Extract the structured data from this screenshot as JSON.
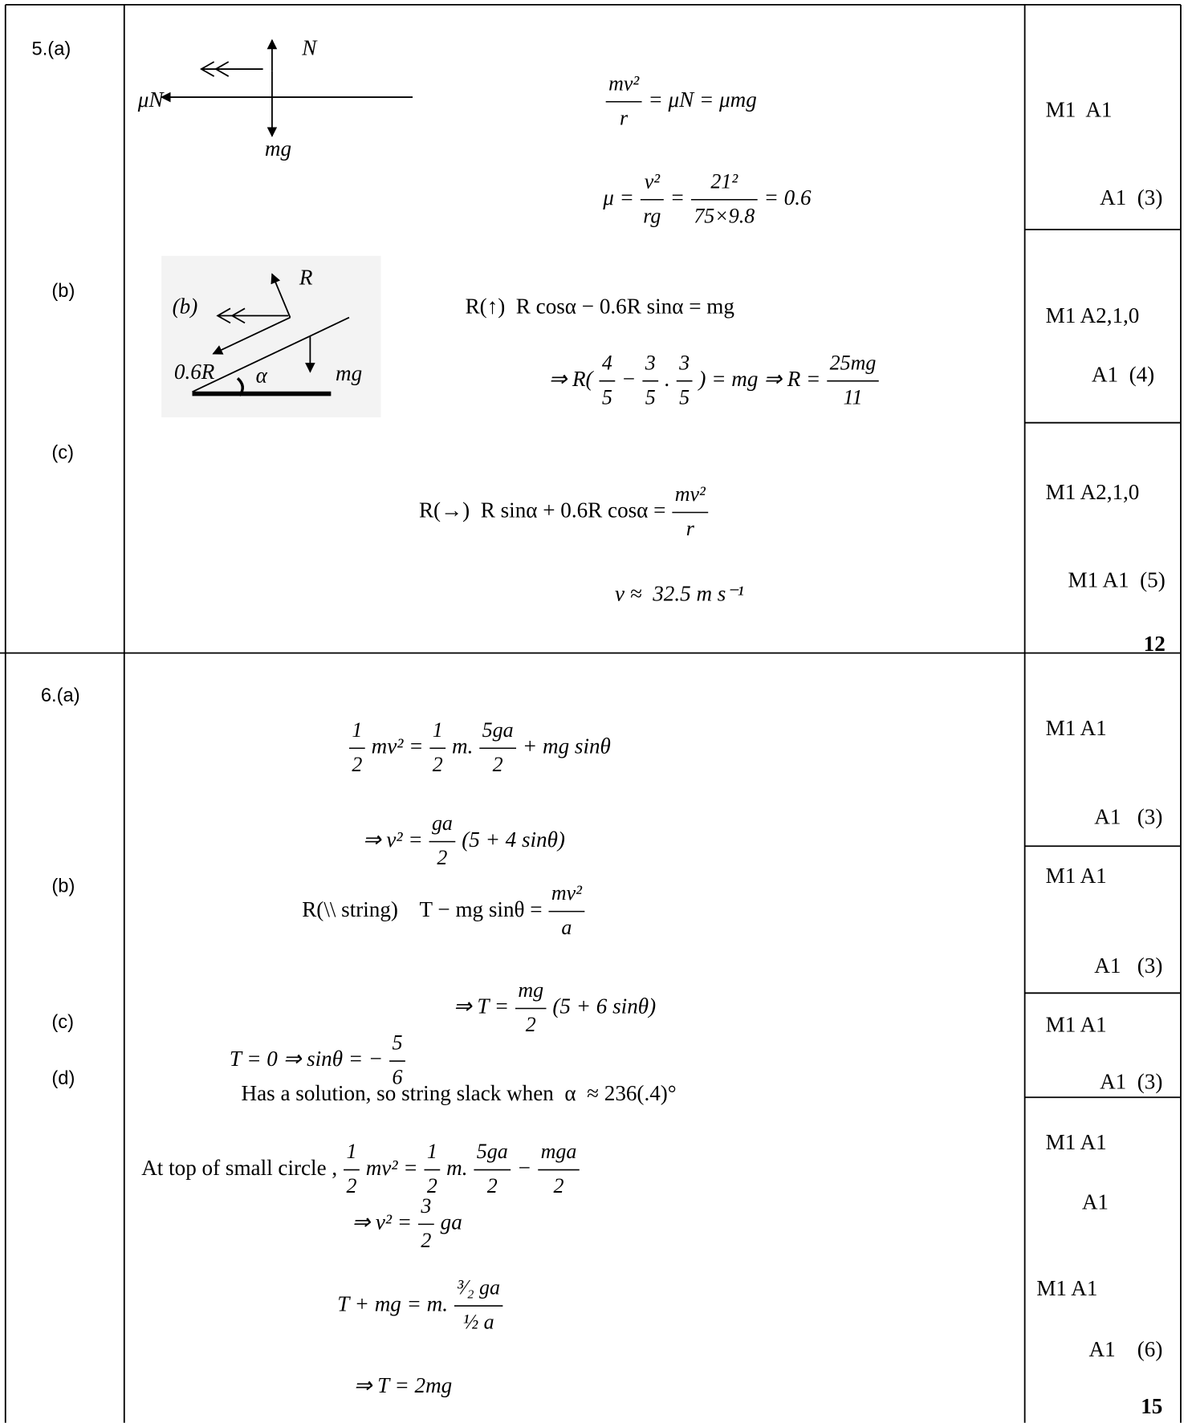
{
  "labels": [
    "5.(a)",
    "(b)",
    "(c)",
    "6.(a)",
    "(b)",
    "(c)",
    "(d)"
  ],
  "marks": [
    "M1  A1",
    "A1  (3)",
    "M1 A2,1,0",
    "A1  (4)",
    "M1 A2,1,0",
    "M1 A1  (5)",
    "12",
    "M1 A1",
    "A1   (3)",
    "M1 A1",
    "A1   (3)",
    "M1 A1",
    "A1  (3)",
    "M1 A1",
    "A1",
    "M1 A1",
    "A1    (6)",
    "15"
  ],
  "diagram_a": {
    "n": "N",
    "mu_n": "μN",
    "mg": "mg"
  },
  "diagram_b": {
    "r": "R",
    "tag": "(b)",
    "friction": "0.6R",
    "angle": "α",
    "mg": "mg"
  },
  "equations": [
    {
      "parts": [
        [
          "mv²",
          "r"
        ],
        "= μN = μmg"
      ]
    },
    {
      "parts": [
        "μ =",
        [
          "v²",
          "rg"
        ],
        "=",
        [
          "21²",
          "75×9.8"
        ],
        "= 0.6"
      ]
    },
    {
      "parts": [
        "R(↑)  R cosα − 0.6R sinα = mg"
      ]
    },
    {
      "parts": [
        "⇒ R(",
        [
          "4",
          "5"
        ],
        "−",
        [
          "3",
          "5"
        ],
        ".",
        [
          "3",
          "5"
        ],
        ") = mg ⇒ R =",
        [
          "25mg",
          "11"
        ]
      ]
    },
    {
      "parts": [
        "R(→)  R sinα + 0.6R cosα =",
        [
          "mv²",
          "r"
        ]
      ]
    },
    {
      "parts": [
        "v ≈  32.5 m s⁻¹"
      ]
    },
    {
      "parts": [
        [
          "1",
          "2"
        ],
        "mv² =",
        [
          "1",
          "2"
        ],
        "m.",
        [
          "5ga",
          "2"
        ],
        "+ mg sinθ"
      ]
    },
    {
      "parts": [
        "⇒ v² =",
        [
          "ga",
          "2"
        ],
        "(5 + 4 sinθ)"
      ]
    },
    {
      "parts": [
        "R(\\\\ string)    T − mg sinθ =",
        [
          "mv²",
          "a"
        ]
      ]
    },
    {
      "parts": [
        "⇒ T =",
        [
          "mg",
          "2"
        ],
        "(5 + 6 sinθ)"
      ]
    },
    {
      "parts": [
        "T = 0 ⇒ sinθ = −",
        [
          "5",
          "6"
        ]
      ]
    },
    {
      "parts": [
        "Has a solution, so string slack when  α  ≈ 236(.4)°"
      ]
    },
    {
      "parts": [
        "At top of small circle ,",
        [
          "1",
          "2"
        ],
        "mv² =",
        [
          "1",
          "2"
        ],
        "m.",
        [
          "5ga",
          "2"
        ],
        "−",
        [
          "mga",
          "2"
        ]
      ]
    },
    {
      "parts": [
        "⇒ v² =",
        [
          "3",
          "2"
        ],
        "ga"
      ]
    },
    {
      "parts": [
        "T + mg = m.",
        [
          "³⁄₂ ga",
          "½ a"
        ]
      ]
    },
    {
      "parts": [
        "⇒ T = 2mg"
      ]
    }
  ]
}
